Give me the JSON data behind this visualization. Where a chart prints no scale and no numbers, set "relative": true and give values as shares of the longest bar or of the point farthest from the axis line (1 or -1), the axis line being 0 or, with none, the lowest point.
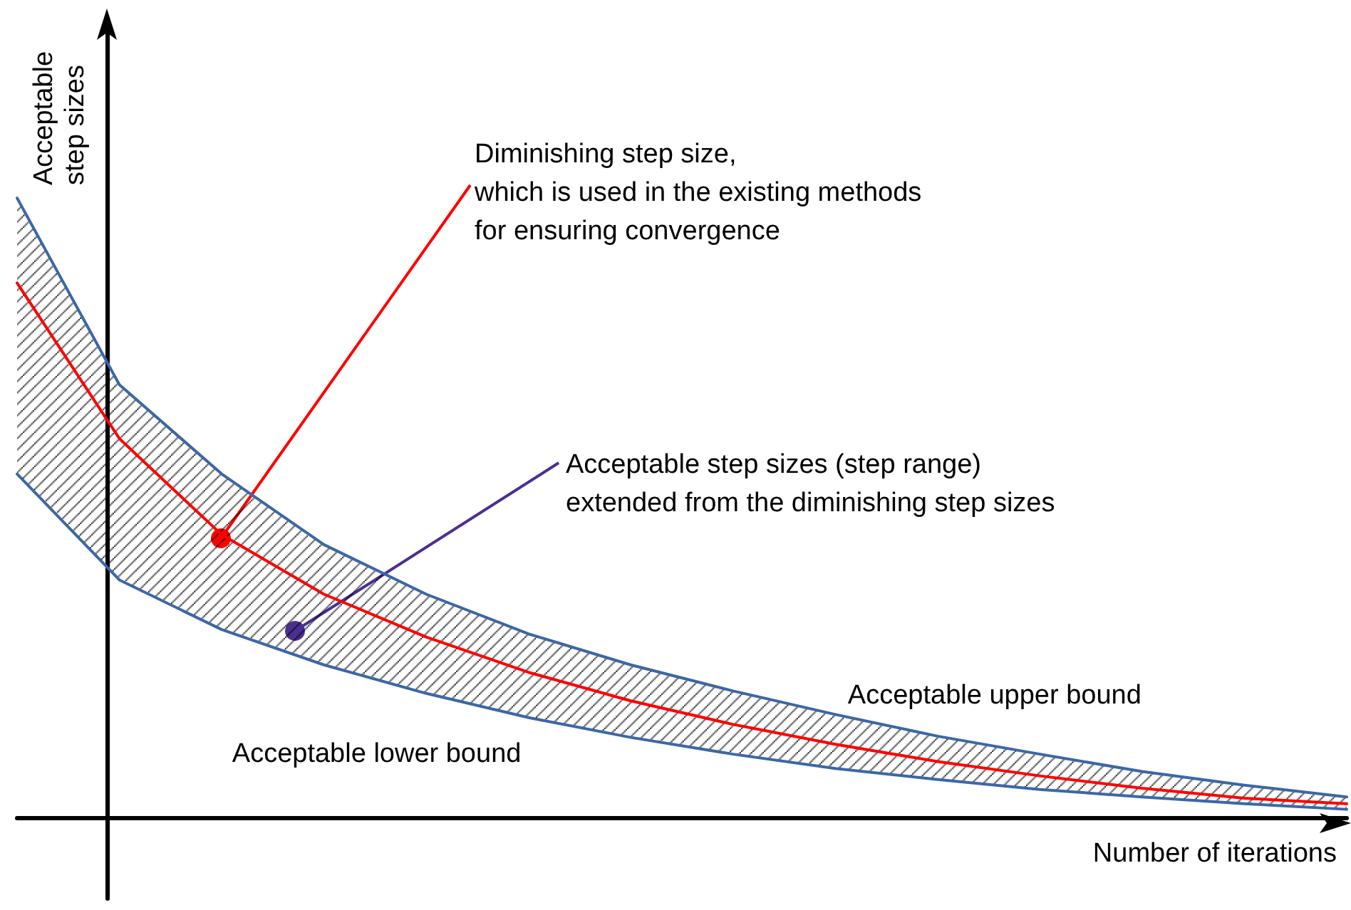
{
  "chart_data": {
    "type": "line",
    "relative": true,
    "xlabel": "Number of iterations",
    "ylabel": "Acceptable\nstep sizes",
    "categories": [
      null,
      null,
      null,
      null,
      null,
      null,
      null,
      null,
      null,
      null,
      null,
      null,
      null,
      null
    ],
    "series": [
      {
        "name": "Acceptable upper bound",
        "color": "#3c67a6",
        "values": [
          1,
          0.699,
          0.555,
          0.441,
          0.361,
          0.297,
          0.247,
          0.205,
          0.167,
          0.132,
          0.103,
          0.075,
          0.053,
          0.034
        ]
      },
      {
        "color": "#ff0000",
        "values": [
          0.863,
          0.612,
          0.457,
          0.361,
          0.292,
          0.235,
          0.189,
          0.151,
          0.119,
          0.091,
          0.068,
          0.048,
          0.032,
          0.023
        ],
        "upper": [
          1,
          0.699,
          0.555,
          0.441,
          0.361,
          0.297,
          0.247,
          0.205,
          0.167,
          0.132,
          0.103,
          0.075,
          0.053,
          0.034
        ],
        "lower": [
          0.555,
          0.384,
          0.304,
          0.247,
          0.201,
          0.162,
          0.13,
          0.103,
          0.08,
          0.062,
          0.046,
          0.034,
          0.023,
          0.014
        ]
      },
      {
        "name": "Acceptable lower bound",
        "color": "#3c67a6",
        "values": [
          0.555,
          0.384,
          0.304,
          0.247,
          0.201,
          0.162,
          0.13,
          0.103,
          0.08,
          0.062,
          0.046,
          0.034,
          0.023,
          0.014
        ]
      }
    ],
    "annotations": [
      "Diminishing step size,\nwhich is used in the existing methods\nfor ensuring convergence",
      "Acceptable step sizes (step range)\nextended from the diminishing step sizes"
    ],
    "marker": "none",
    "line_style": "solid",
    "grid": false,
    "legend": false
  }
}
